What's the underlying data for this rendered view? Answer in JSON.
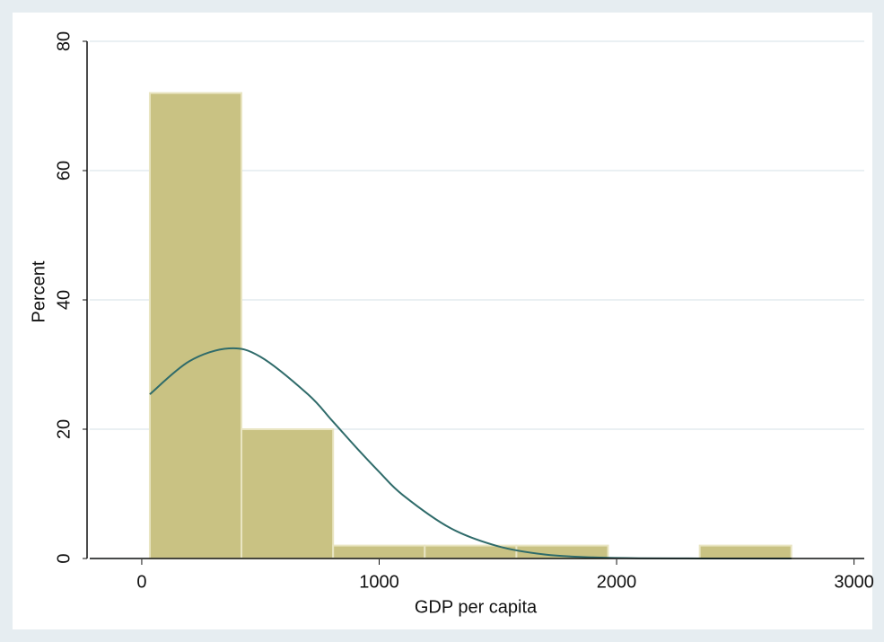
{
  "chart_data": {
    "type": "histogram",
    "xlabel": "GDP per capita",
    "ylabel": "Percent",
    "bins": [
      34,
      420,
      806,
      1192,
      1578,
      1964,
      2350,
      2736
    ],
    "values": [
      72,
      20,
      2,
      2,
      2,
      0,
      2
    ],
    "color": "#c9c283",
    "edgecolor": "#e9e5c2",
    "density": {
      "color": "#2f6b6a",
      "x": [
        34,
        200,
        367,
        500,
        700,
        800,
        900,
        1000,
        1100,
        1300,
        1500,
        1700,
        1900,
        2100,
        2300,
        2500,
        2736
      ],
      "values": [
        25.4,
        30.5,
        32.5,
        31.2,
        25.4,
        21.4,
        17.3,
        13.4,
        9.8,
        4.7,
        1.9,
        0.6,
        0.17,
        0.04,
        0.01,
        0,
        0
      ]
    },
    "xlim": [
      -219,
      3043
    ],
    "ylim": [
      0,
      80
    ],
    "xticks": [
      0,
      1000,
      2000,
      3000
    ],
    "yticks": [
      0,
      20,
      40,
      60,
      80
    ],
    "grid": true
  }
}
